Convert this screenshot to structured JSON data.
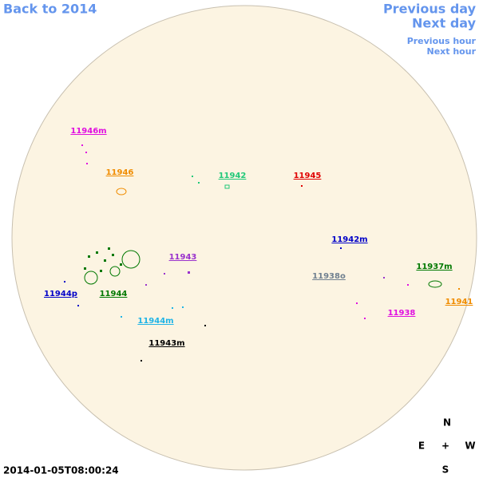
{
  "nav": {
    "back": "Back to 2014",
    "previous_day": "Previous day",
    "next_day": "Next day",
    "previous_hour": "Previous hour",
    "next_hour": "Next hour"
  },
  "regions": [
    {
      "label": "11946m",
      "color": "#e010e0"
    },
    {
      "label": "11946",
      "color": "#f08c00"
    },
    {
      "label": "11942",
      "color": "#20c878"
    },
    {
      "label": "11945",
      "color": "#e00000"
    },
    {
      "label": "11942m",
      "color": "#0000c8"
    },
    {
      "label": "11943",
      "color": "#9a32cd"
    },
    {
      "label": "11938o",
      "color": "#708090"
    },
    {
      "label": "11937m",
      "color": "#007800"
    },
    {
      "label": "11944p",
      "color": "#0000c8"
    },
    {
      "label": "11944",
      "color": "#007800"
    },
    {
      "label": "11941",
      "color": "#f08c00"
    },
    {
      "label": "11938",
      "color": "#e010e0"
    },
    {
      "label": "11944m",
      "color": "#20b4e6"
    },
    {
      "label": "11943m",
      "color": "#000000"
    }
  ],
  "compass": {
    "north": "N",
    "east": "E",
    "center": "+",
    "west": "W",
    "south": "S"
  },
  "timestamp": "2014-01-05T08:00:24"
}
